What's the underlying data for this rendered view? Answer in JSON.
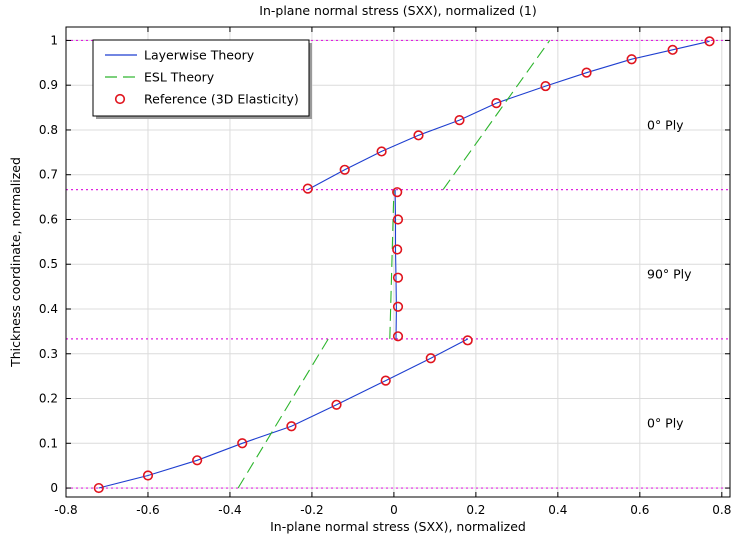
{
  "chart_data": {
    "type": "line",
    "title": "In-plane normal stress (SXX), normalized (1)",
    "xlabel": "In-plane normal stress (SXX), normalized",
    "ylabel": "Thickness coordinate, normalized",
    "xlim": [
      -0.8,
      0.82
    ],
    "ylim": [
      -0.02,
      1.03
    ],
    "x_ticks": [
      -0.8,
      -0.6,
      -0.4,
      -0.2,
      0,
      0.2,
      0.4,
      0.6,
      0.8
    ],
    "x_tick_labels": [
      "-0.8",
      "-0.6",
      "-0.4",
      "-0.2",
      "0",
      "0.2",
      "0.4",
      "0.6",
      "0.8"
    ],
    "y_ticks": [
      0,
      0.1,
      0.2,
      0.3,
      0.4,
      0.5,
      0.6,
      0.7,
      0.8,
      0.9,
      1
    ],
    "y_tick_labels": [
      "0",
      "0.1",
      "0.2",
      "0.3",
      "0.4",
      "0.5",
      "0.6",
      "0.7",
      "0.8",
      "0.9",
      "1"
    ],
    "grid": true,
    "legend_position": "top-left",
    "interface_lines": [
      0,
      0.3333,
      0.6667,
      1
    ],
    "ply_labels": [
      {
        "text": "0° Ply",
        "y": 0.144
      },
      {
        "text": "90° Ply",
        "y": 0.477
      },
      {
        "text": "0° Ply",
        "y": 0.81
      }
    ],
    "series": [
      {
        "name": "Layerwise Theory",
        "style": "solid",
        "color": "#1f3fd0",
        "segments": [
          [
            [
              -0.72,
              0.0
            ],
            [
              -0.6,
              0.028
            ],
            [
              -0.48,
              0.062
            ],
            [
              -0.37,
              0.1
            ],
            [
              -0.25,
              0.138
            ],
            [
              -0.14,
              0.186
            ],
            [
              -0.02,
              0.24
            ],
            [
              0.09,
              0.29
            ],
            [
              0.18,
              0.333
            ]
          ],
          [
            [
              0.005,
              0.3333
            ],
            [
              0.006,
              0.4
            ],
            [
              0.005,
              0.47
            ],
            [
              0.004,
              0.533
            ],
            [
              0.004,
              0.6
            ],
            [
              0.003,
              0.6667
            ]
          ],
          [
            [
              -0.21,
              0.6667
            ],
            [
              -0.12,
              0.711
            ],
            [
              -0.03,
              0.752
            ],
            [
              0.06,
              0.788
            ],
            [
              0.16,
              0.822
            ],
            [
              0.25,
              0.86
            ],
            [
              0.37,
              0.898
            ],
            [
              0.47,
              0.928
            ],
            [
              0.58,
              0.958
            ],
            [
              0.68,
              0.979
            ],
            [
              0.77,
              0.998
            ]
          ]
        ]
      },
      {
        "name": "ESL Theory",
        "style": "dashed",
        "color": "#2db52d",
        "segments": [
          [
            [
              -0.38,
              0.0
            ],
            [
              -0.16,
              0.3333
            ]
          ],
          [
            [
              -0.01,
              0.3333
            ],
            [
              0.0,
              0.6667
            ]
          ],
          [
            [
              0.12,
              0.6667
            ],
            [
              0.38,
              1.0
            ]
          ]
        ]
      },
      {
        "name": "Reference (3D Elasticity)",
        "style": "markers",
        "color": "#e0141e",
        "points": [
          [
            -0.72,
            0.0
          ],
          [
            -0.6,
            0.028
          ],
          [
            -0.48,
            0.062
          ],
          [
            -0.37,
            0.1
          ],
          [
            -0.25,
            0.138
          ],
          [
            -0.14,
            0.186
          ],
          [
            -0.02,
            0.24
          ],
          [
            0.09,
            0.29
          ],
          [
            0.18,
            0.33
          ],
          [
            0.01,
            0.339
          ],
          [
            0.01,
            0.405
          ],
          [
            0.01,
            0.47
          ],
          [
            0.008,
            0.533
          ],
          [
            0.01,
            0.6
          ],
          [
            0.008,
            0.661
          ],
          [
            -0.21,
            0.669
          ],
          [
            -0.12,
            0.711
          ],
          [
            -0.03,
            0.752
          ],
          [
            0.06,
            0.788
          ],
          [
            0.16,
            0.822
          ],
          [
            0.25,
            0.86
          ],
          [
            0.37,
            0.898
          ],
          [
            0.47,
            0.928
          ],
          [
            0.58,
            0.958
          ],
          [
            0.68,
            0.979
          ],
          [
            0.77,
            0.998
          ]
        ]
      }
    ]
  }
}
